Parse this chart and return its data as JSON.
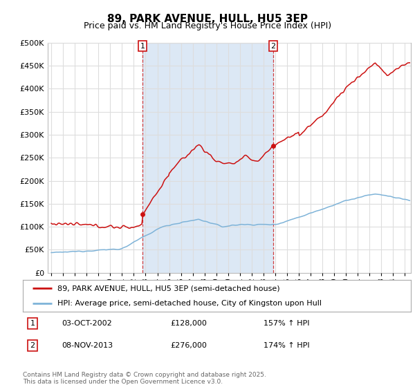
{
  "title": "89, PARK AVENUE, HULL, HU5 3EP",
  "subtitle": "Price paid vs. HM Land Registry's House Price Index (HPI)",
  "ylim": [
    0,
    500000
  ],
  "yticks": [
    0,
    50000,
    100000,
    150000,
    200000,
    250000,
    300000,
    350000,
    400000,
    450000,
    500000
  ],
  "bg_color": "#ffffff",
  "plot_bg": "#ffffff",
  "grid_color": "#dddddd",
  "shade_color": "#dce8f5",
  "hpi_color": "#7eb3d8",
  "price_color": "#cc1111",
  "sale1_date": "03-OCT-2002",
  "sale1_price": 128000,
  "sale1_hpi": "157% ↑ HPI",
  "sale1_x": 2002.75,
  "sale2_date": "08-NOV-2013",
  "sale2_price": 276000,
  "sale2_hpi": "174% ↑ HPI",
  "sale2_x": 2013.83,
  "legend_line1": "89, PARK AVENUE, HULL, HU5 3EP (semi-detached house)",
  "legend_line2": "HPI: Average price, semi-detached house, City of Kingston upon Hull",
  "footer": "Contains HM Land Registry data © Crown copyright and database right 2025.\nThis data is licensed under the Open Government Licence v3.0.",
  "title_fontsize": 11,
  "subtitle_fontsize": 9,
  "xmin": 1994.7,
  "xmax": 2025.5
}
